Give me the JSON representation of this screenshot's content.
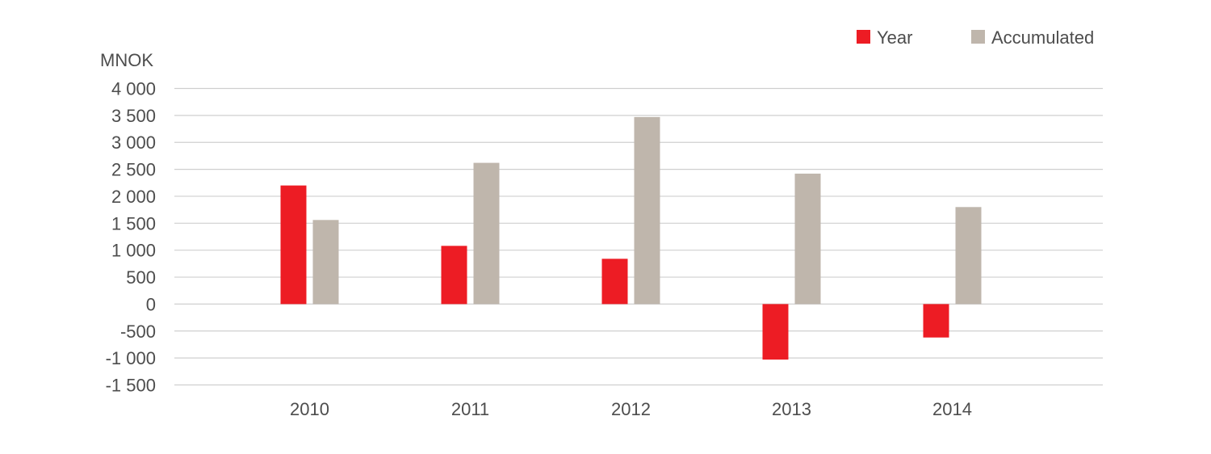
{
  "chart_data": {
    "type": "bar",
    "unit_label": "MNOK",
    "categories": [
      "2010",
      "2011",
      "2012",
      "2013",
      "2014"
    ],
    "series": [
      {
        "name": "Year",
        "color": "#ed1c24",
        "values": [
          2200,
          1080,
          840,
          -1030,
          -620
        ]
      },
      {
        "name": "Accumulated",
        "color": "#bfb6ac",
        "values": [
          1560,
          2620,
          3470,
          2420,
          1800
        ]
      }
    ],
    "yticks": [
      4000,
      3500,
      3000,
      2500,
      2000,
      1500,
      1000,
      500,
      0,
      -500,
      -1000,
      -1500
    ],
    "ytick_labels": [
      "4 000",
      "3 500",
      "3 000",
      "2 500",
      "2 000",
      "1 500",
      "1 000",
      "500",
      "0",
      "-500",
      "-1 000",
      "-1 500"
    ],
    "ylim": [
      -1500,
      4000
    ],
    "grid": true,
    "legend_position": "top-right"
  }
}
